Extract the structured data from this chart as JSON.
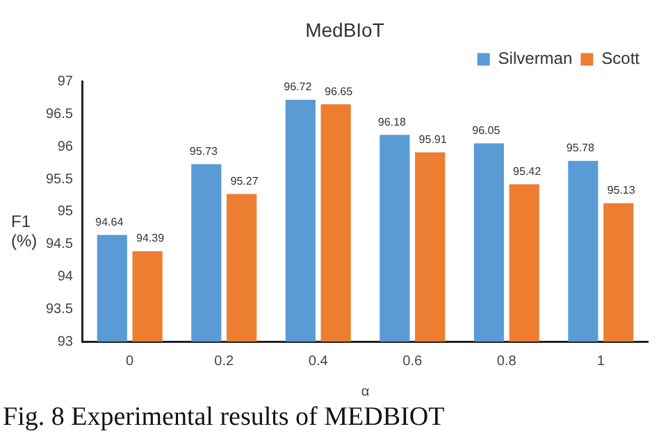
{
  "chart_data": {
    "type": "bar",
    "title": "MedBIoT",
    "xlabel": "α",
    "ylabel": "F1 (%)",
    "categories": [
      "0",
      "0.2",
      "0.4",
      "0.6",
      "0.8",
      "1"
    ],
    "series": [
      {
        "name": "Silverman",
        "color": "#5b9bd5",
        "values": [
          94.64,
          95.73,
          96.72,
          96.18,
          96.05,
          95.78
        ]
      },
      {
        "name": "Scott",
        "color": "#ed7d31",
        "values": [
          94.39,
          95.27,
          96.65,
          95.91,
          95.42,
          95.13
        ]
      }
    ],
    "ylim": [
      93,
      97
    ],
    "yticks": [
      93,
      93.5,
      94,
      94.5,
      95,
      95.5,
      96,
      96.5,
      97
    ],
    "grid": false,
    "legend": "top right",
    "data_labels": true,
    "annotations": [
      "Fig. 8 Experimental results of MEDBIOT"
    ]
  }
}
